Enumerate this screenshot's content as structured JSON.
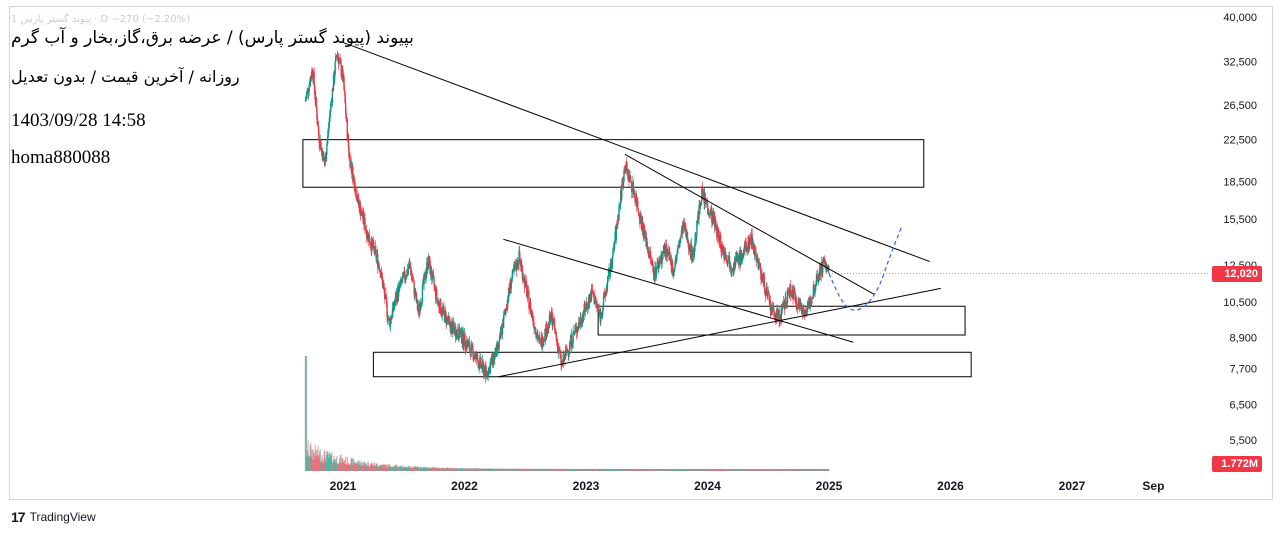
{
  "overlay": {
    "ghost_line": "1 پیوند گستر پارس · D  −270 (−2.20%)",
    "title": "بپیوند (پیوند گستر پارس) / عرضه برق،گاز،بخار و آب گرم",
    "subtitle": "روزانه / آخرین قیمت / بدون تعدیل",
    "datetime": "1403/09/28 14:58",
    "username": "homa880088"
  },
  "price_badge": "12,020",
  "volume_badge": "1.772M",
  "brand": {
    "logo": "17",
    "name": "TradingView"
  },
  "colors": {
    "up": "#089981",
    "down": "#f23645",
    "lines": "#000000",
    "projection": "#2962ff"
  },
  "chart_data": {
    "type": "candlestick",
    "y_axis_ticks": [
      "40,000",
      "32,500",
      "26,500",
      "22,500",
      "18,500",
      "15,500",
      "12,500",
      "10,500",
      "8,900",
      "7,700",
      "6,500",
      "5,500"
    ],
    "y_axis_values": [
      40000,
      32500,
      26500,
      22500,
      18500,
      15500,
      12500,
      10500,
      8900,
      7700,
      6500,
      5500
    ],
    "x_axis_labels": [
      "2021",
      "2022",
      "2023",
      "2024",
      "2025",
      "2026",
      "2027",
      "Sep"
    ],
    "x_axis_years": [
      2021,
      2022,
      2023,
      2024,
      2025,
      2026,
      2027,
      2027.67
    ],
    "last_price": 12020,
    "price_anchors": [
      [
        2020.69,
        27000
      ],
      [
        2020.75,
        31500
      ],
      [
        2020.8,
        23000
      ],
      [
        2020.85,
        20000
      ],
      [
        2020.9,
        26500
      ],
      [
        2020.95,
        34000
      ],
      [
        2021.0,
        30000
      ],
      [
        2021.05,
        21000
      ],
      [
        2021.12,
        17000
      ],
      [
        2021.2,
        14500
      ],
      [
        2021.3,
        12500
      ],
      [
        2021.38,
        9500
      ],
      [
        2021.45,
        11000
      ],
      [
        2021.55,
        12500
      ],
      [
        2021.62,
        10000
      ],
      [
        2021.7,
        12800
      ],
      [
        2021.78,
        10500
      ],
      [
        2021.88,
        9400
      ],
      [
        2021.97,
        9000
      ],
      [
        2022.08,
        8200
      ],
      [
        2022.18,
        7500
      ],
      [
        2022.28,
        8500
      ],
      [
        2022.38,
        11500
      ],
      [
        2022.45,
        13000
      ],
      [
        2022.55,
        10000
      ],
      [
        2022.62,
        8600
      ],
      [
        2022.72,
        9800
      ],
      [
        2022.8,
        7800
      ],
      [
        2022.88,
        8800
      ],
      [
        2022.95,
        9600
      ],
      [
        2023.05,
        11000
      ],
      [
        2023.12,
        9800
      ],
      [
        2023.22,
        13000
      ],
      [
        2023.32,
        20000
      ],
      [
        2023.4,
        17500
      ],
      [
        2023.48,
        14500
      ],
      [
        2023.56,
        12000
      ],
      [
        2023.65,
        13500
      ],
      [
        2023.72,
        12200
      ],
      [
        2023.8,
        15000
      ],
      [
        2023.88,
        13000
      ],
      [
        2023.95,
        17500
      ],
      [
        2024.05,
        15500
      ],
      [
        2024.12,
        13500
      ],
      [
        2024.2,
        12500
      ],
      [
        2024.28,
        13000
      ],
      [
        2024.36,
        14200
      ],
      [
        2024.45,
        11800
      ],
      [
        2024.53,
        10000
      ],
      [
        2024.6,
        9800
      ],
      [
        2024.68,
        11200
      ],
      [
        2024.75,
        10400
      ],
      [
        2024.82,
        10000
      ],
      [
        2024.9,
        11800
      ],
      [
        2024.96,
        12700
      ],
      [
        2025.0,
        12020
      ]
    ],
    "annotations": {
      "resistance_lines": [
        {
          "from": [
            2021.0,
            35500
          ],
          "to": [
            2025.83,
            12700
          ]
        },
        {
          "from": [
            2023.32,
            21000
          ],
          "to": [
            2025.37,
            10900
          ]
        }
      ],
      "channel_lines": [
        {
          "from": [
            2022.32,
            14100
          ],
          "to": [
            2025.2,
            8700
          ]
        },
        {
          "from": [
            2022.28,
            7400
          ],
          "to": [
            2025.92,
            11200
          ]
        }
      ],
      "zones": [
        {
          "x": [
            2020.67,
            2025.78
          ],
          "y": [
            18000,
            22500
          ]
        },
        {
          "x": [
            2023.1,
            2026.12
          ],
          "y": [
            9000,
            10300
          ]
        },
        {
          "x": [
            2021.25,
            2026.17
          ],
          "y": [
            7400,
            8300
          ]
        }
      ],
      "projection": [
        [
          2025.0,
          12000
        ],
        [
          2025.12,
          10300
        ],
        [
          2025.25,
          10000
        ],
        [
          2025.4,
          11000
        ],
        [
          2025.5,
          13000
        ],
        [
          2025.6,
          15000
        ]
      ]
    }
  }
}
